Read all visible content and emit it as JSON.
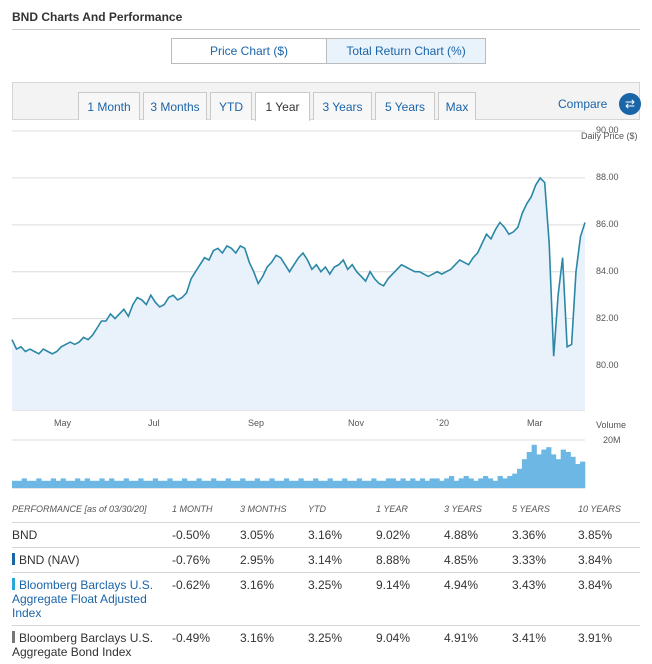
{
  "header": {
    "title": "BND Charts And Performance"
  },
  "chart_toggle": {
    "price_label": "Price Chart ($)",
    "return_label": "Total Return Chart (%)"
  },
  "range_tabs": [
    {
      "label": "1 Month",
      "w": 62
    },
    {
      "label": "3 Months",
      "w": 64
    },
    {
      "label": "YTD",
      "w": 42
    },
    {
      "label": "1 Year",
      "w": 55,
      "active": true
    },
    {
      "label": "3 Years",
      "w": 59
    },
    {
      "label": "5 Years",
      "w": 60
    },
    {
      "label": "Max",
      "w": 38
    }
  ],
  "compare": {
    "label": "Compare",
    "icon": "swap-arrows-icon"
  },
  "colors": {
    "line": "#2a87a6",
    "area": "#e9f2fb",
    "volume": "#6cb7e3",
    "link": "#1a64a8"
  },
  "chart_data": {
    "type": "area",
    "ylabel": "Daily Price ($)",
    "ylim": [
      79,
      90
    ],
    "yticks": [
      "90.00",
      "88.00",
      "86.00",
      "84.00",
      "82.00",
      "80.00"
    ],
    "xticks": [
      "May",
      "Jul",
      "Sep",
      "Nov",
      "`20",
      "Mar"
    ],
    "volume_label": "Volume",
    "volume_ticks": [
      "20M"
    ],
    "series": [
      {
        "values": [
          81.1,
          80.7,
          80.8,
          80.6,
          80.7,
          80.6,
          80.5,
          80.7,
          80.6,
          80.5,
          80.6,
          80.8,
          80.9,
          81.0,
          80.9,
          81.0,
          81.2,
          81.1,
          81.3,
          81.6,
          81.9,
          81.9,
          82.2,
          82.0,
          82.2,
          82.4,
          82.1,
          82.6,
          82.9,
          82.8,
          82.6,
          83.0,
          82.7,
          82.5,
          82.6,
          82.9,
          83.0,
          82.8,
          82.9,
          83.1,
          83.7,
          84.0,
          84.3,
          84.6,
          84.5,
          84.9,
          85.0,
          84.8,
          85.1,
          85.0,
          84.8,
          85.1,
          85.0,
          84.4,
          84.0,
          83.5,
          83.8,
          84.2,
          84.4,
          84.7,
          84.6,
          84.3,
          84.0,
          84.3,
          84.6,
          84.8,
          84.5,
          84.1,
          84.3,
          84.0,
          84.2,
          83.9,
          84.2,
          84.3,
          84.5,
          84.1,
          84.3,
          84.0,
          83.8,
          83.6,
          84.0,
          83.7,
          83.5,
          83.4,
          83.7,
          83.9,
          84.1,
          84.3,
          84.2,
          84.1,
          84.0,
          84.0,
          83.9,
          83.8,
          83.9,
          84.0,
          83.9,
          84.0,
          84.1,
          84.3,
          84.5,
          84.4,
          84.3,
          84.6,
          84.8,
          85.2,
          85.6,
          85.4,
          85.8,
          86.1,
          85.9,
          85.6,
          85.7,
          85.9,
          86.5,
          86.9,
          87.2,
          87.7,
          88.0,
          87.8,
          85.2,
          80.4,
          83.0,
          84.6,
          80.8,
          80.9,
          84.0,
          85.5,
          86.1
        ]
      }
    ],
    "volume": [
      3,
      3,
      4,
      3,
      3,
      4,
      3,
      3,
      4,
      3,
      4,
      3,
      3,
      4,
      3,
      4,
      3,
      3,
      4,
      3,
      4,
      3,
      3,
      4,
      3,
      3,
      4,
      3,
      3,
      4,
      3,
      3,
      4,
      3,
      3,
      4,
      3,
      3,
      4,
      3,
      3,
      4,
      3,
      3,
      4,
      3,
      3,
      4,
      3,
      3,
      4,
      3,
      3,
      4,
      3,
      3,
      4,
      3,
      3,
      4,
      3,
      3,
      4,
      3,
      3,
      4,
      3,
      3,
      4,
      3,
      3,
      4,
      3,
      3,
      4,
      3,
      3,
      4,
      4,
      3,
      4,
      3,
      4,
      3,
      4,
      3,
      4,
      4,
      3,
      4,
      5,
      3,
      4,
      5,
      4,
      3,
      4,
      5,
      4,
      3,
      5,
      4,
      5,
      6,
      8,
      12,
      15,
      18,
      14,
      16,
      17,
      14,
      12,
      16,
      15,
      13,
      10,
      11
    ]
  },
  "performance": {
    "headers": [
      "PERFORMANCE [as of 03/30/20]",
      "1 MONTH",
      "3 MONTHS",
      "YTD",
      "1 YEAR",
      "3 YEARS",
      "5 YEARS",
      "10 YEARS"
    ],
    "rows": [
      {
        "name": "BND",
        "marker": "",
        "link": false,
        "values": [
          "-0.50%",
          "3.05%",
          "3.16%",
          "9.02%",
          "4.88%",
          "3.36%",
          "3.85%"
        ]
      },
      {
        "name": "BND (NAV)",
        "marker": "#1a64a8",
        "link": false,
        "values": [
          "-0.76%",
          "2.95%",
          "3.14%",
          "8.88%",
          "4.85%",
          "3.33%",
          "3.84%"
        ]
      },
      {
        "name": "Bloomberg Barclays U.S. Aggregate Float Adjusted Index",
        "marker": "#2aa7d8",
        "link": true,
        "values": [
          "-0.62%",
          "3.16%",
          "3.25%",
          "9.14%",
          "4.94%",
          "3.43%",
          "3.84%"
        ]
      },
      {
        "name": "Bloomberg Barclays U.S. Aggregate Bond Index",
        "marker": "#777777",
        "link": false,
        "values": [
          "-0.49%",
          "3.16%",
          "3.25%",
          "9.04%",
          "4.91%",
          "3.41%",
          "3.91%"
        ]
      }
    ]
  }
}
